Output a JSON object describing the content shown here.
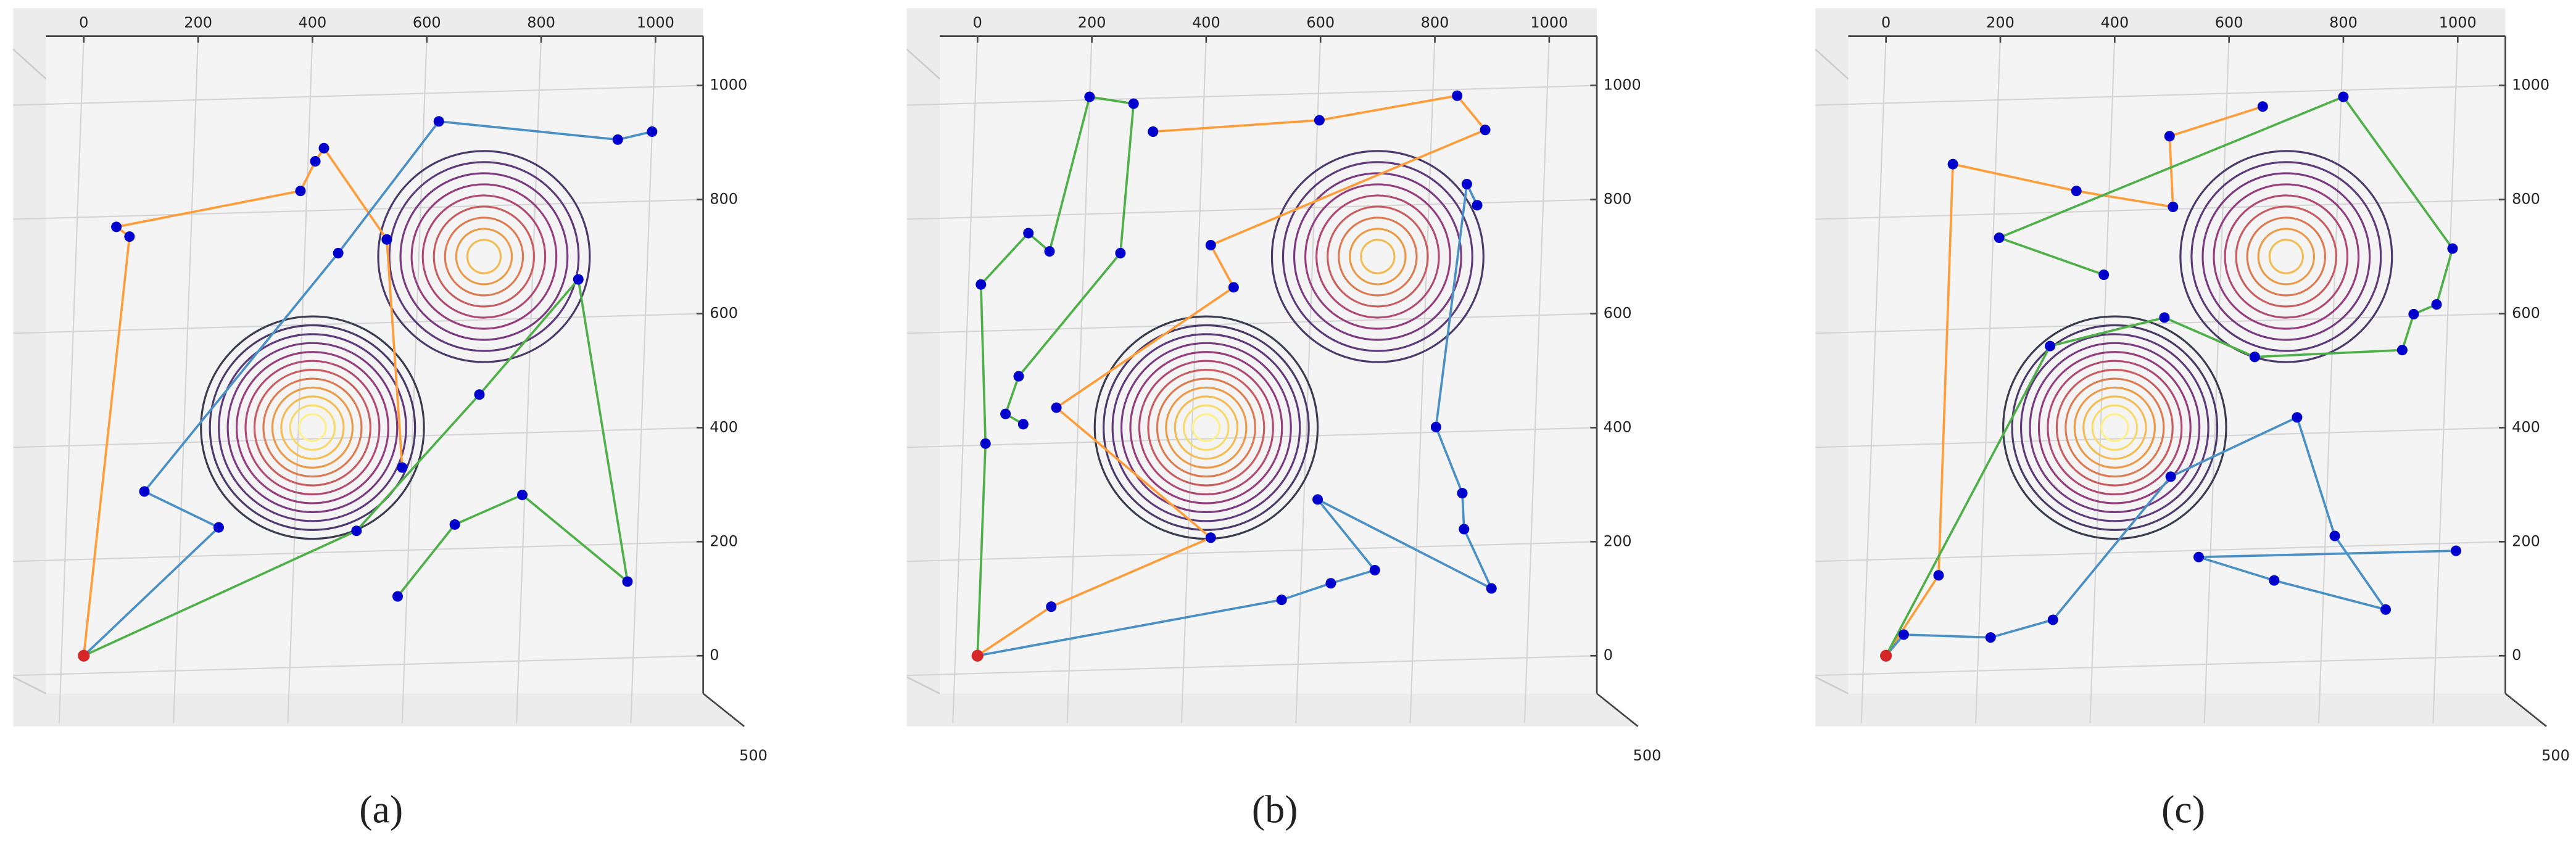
{
  "chart_data": [
    {
      "type": "path-map",
      "caption": "(a)",
      "xlim": [
        0,
        1000
      ],
      "ylim": [
        0,
        1000
      ],
      "xticks": [
        0,
        200,
        400,
        600,
        800,
        1000
      ],
      "yticks": [
        0,
        200,
        400,
        600,
        800,
        1000
      ],
      "zticks": [
        500
      ],
      "peaks": [
        [
          400,
          400
        ],
        [
          700,
          700
        ]
      ],
      "origin": [
        0,
        0
      ],
      "marker_color": "#0000cc",
      "origin_color": "#d62728",
      "grid": true,
      "series": [
        {
          "color": "#ff9d3a",
          "x": [
            0,
            80,
            57,
            379,
            405,
            420,
            530,
            557
          ],
          "y": [
            0,
            735,
            752,
            815,
            867,
            890,
            730,
            330
          ]
        },
        {
          "color": "#4a90c4",
          "x": [
            0,
            236,
            106,
            445,
            621,
            934,
            994
          ],
          "y": [
            0,
            225,
            288,
            706,
            937,
            905,
            919
          ]
        },
        {
          "color": "#4fb04a",
          "x": [
            0,
            477,
            692,
            865,
            951,
            767,
            649,
            549
          ],
          "y": [
            0,
            219,
            458,
            660,
            130,
            282,
            230,
            104
          ]
        }
      ]
    },
    {
      "type": "path-map",
      "caption": "(b)",
      "xlim": [
        0,
        1000
      ],
      "ylim": [
        0,
        1000
      ],
      "xticks": [
        0,
        200,
        400,
        600,
        800,
        1000
      ],
      "yticks": [
        0,
        200,
        400,
        600,
        800,
        1000
      ],
      "zticks": [
        500
      ],
      "peaks": [
        [
          400,
          400
        ],
        [
          700,
          700
        ]
      ],
      "origin": [
        0,
        0
      ],
      "marker_color": "#0000cc",
      "origin_color": "#d62728",
      "grid": true,
      "series": [
        {
          "color": "#4fb04a",
          "x": [
            0,
            14,
            6,
            89,
            126,
            196,
            273,
            250,
            72,
            49,
            80
          ],
          "y": [
            0,
            372,
            651,
            741,
            709,
            980,
            968,
            706,
            490,
            424,
            406
          ]
        },
        {
          "color": "#ff9d3a",
          "x": [
            0,
            129,
            408,
            138,
            448,
            408,
            888,
            839,
            598,
            307
          ],
          "y": [
            0,
            86,
            207,
            435,
            646,
            720,
            922,
            982,
            939,
            919
          ]
        },
        {
          "color": "#4a90c4",
          "x": [
            0,
            532,
            618,
            695,
            595,
            899,
            851,
            848,
            802,
            856,
            874
          ],
          "y": [
            0,
            98,
            127,
            150,
            274,
            118,
            222,
            285,
            401,
            827,
            790
          ]
        }
      ]
    },
    {
      "type": "path-map",
      "caption": "(c)",
      "xlim": [
        0,
        1000
      ],
      "ylim": [
        0,
        1000
      ],
      "xticks": [
        0,
        200,
        400,
        600,
        800,
        1000
      ],
      "yticks": [
        0,
        200,
        400,
        600,
        800,
        1000
      ],
      "zticks": [
        500
      ],
      "peaks": [
        [
          400,
          400
        ],
        [
          700,
          700
        ]
      ],
      "origin": [
        0,
        0
      ],
      "marker_color": "#0000cc",
      "origin_color": "#d62728",
      "grid": true,
      "series": [
        {
          "color": "#ff9d3a",
          "x": [
            0,
            92,
            117,
            333,
            502,
            496,
            659
          ],
          "y": [
            0,
            141,
            862,
            815,
            787,
            911,
            963
          ]
        },
        {
          "color": "#4a90c4",
          "x": [
            0,
            31,
            183,
            292,
            498,
            719,
            785,
            874,
            679,
            547,
            997
          ],
          "y": [
            0,
            37,
            32,
            63,
            314,
            418,
            210,
            81,
            132,
            173,
            184
          ]
        },
        {
          "color": "#4fb04a",
          "x": [
            0,
            287,
            487,
            645,
            903,
            923,
            963,
            991,
            800,
            198,
            381
          ],
          "y": [
            0,
            543,
            593,
            524,
            536,
            599,
            616,
            714,
            980,
            733,
            668
          ]
        }
      ]
    }
  ]
}
